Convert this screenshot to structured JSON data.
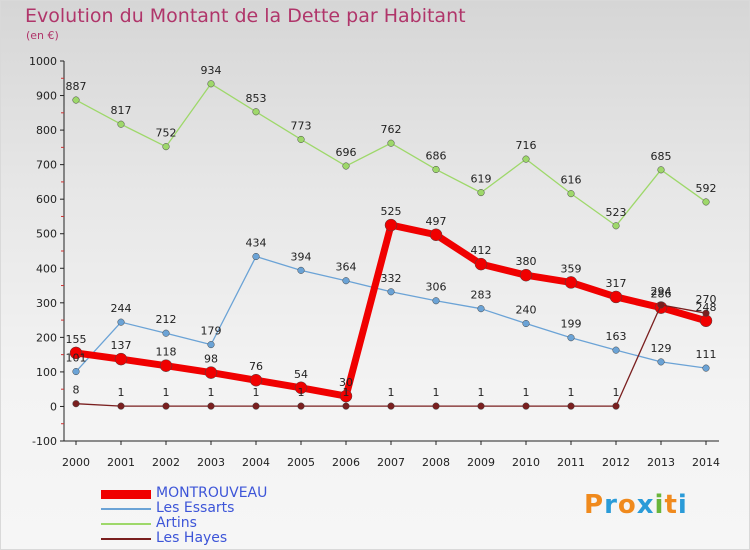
{
  "header": {
    "title": "Evolution du Montant de la Dette par Habitant",
    "subtitle": "(en €)"
  },
  "logo": {
    "text": "Proxiti",
    "colors": [
      "#f08a1d",
      "#2a9bd8",
      "#f08a1d",
      "#2a9bd8",
      "#69b53a",
      "#f08a1d",
      "#2a9bd8"
    ]
  },
  "chart_data": {
    "type": "line",
    "title": "Evolution du Montant de la Dette par Habitant",
    "subtitle": "(en €)",
    "x": [
      "2000",
      "2001",
      "2002",
      "2003",
      "2004",
      "2005",
      "2006",
      "2007",
      "2008",
      "2009",
      "2010",
      "2011",
      "2012",
      "2013",
      "2014"
    ],
    "ylim": [
      -100,
      1000
    ],
    "yticks": [
      -100,
      0,
      100,
      200,
      300,
      400,
      500,
      600,
      700,
      800,
      900,
      1000
    ],
    "grid": false,
    "legend_placement": "bottom-left",
    "series": [
      {
        "name": "MONTROUVEAU",
        "color": "#f00000",
        "values": [
          155,
          137,
          118,
          98,
          76,
          54,
          30,
          525,
          497,
          412,
          380,
          359,
          317,
          286,
          248
        ],
        "labels": [
          "155",
          "137",
          "118",
          "98",
          "76",
          "54",
          "30",
          "525",
          "497",
          "412",
          "380",
          "359",
          "317",
          "286",
          "248"
        ]
      },
      {
        "name": "Les Essarts",
        "color": "#6ba3d6",
        "values": [
          101,
          244,
          212,
          179,
          434,
          394,
          364,
          332,
          306,
          283,
          240,
          199,
          163,
          129,
          111
        ],
        "labels": [
          "101",
          "244",
          "212",
          "179",
          "434",
          "394",
          "364",
          "332",
          "306",
          "283",
          "240",
          "199",
          "163",
          "129",
          "111"
        ]
      },
      {
        "name": "Artins",
        "color": "#9ed86a",
        "values": [
          887,
          817,
          752,
          934,
          853,
          773,
          696,
          762,
          686,
          619,
          716,
          616,
          523,
          685,
          592
        ],
        "labels": [
          "887",
          "817",
          "752",
          "934",
          "853",
          "773",
          "696",
          "762",
          "686",
          "619",
          "716",
          "616",
          "523",
          "685",
          "592"
        ]
      },
      {
        "name": "Les Hayes",
        "color": "#7a1f1f",
        "values": [
          8,
          1,
          1,
          1,
          1,
          1,
          1,
          1,
          1,
          1,
          1,
          1,
          1,
          294,
          270
        ],
        "labels": [
          "8",
          "1",
          "1",
          "1",
          "1",
          "1",
          "1",
          "1",
          "1",
          "1",
          "1",
          "1",
          "1",
          "294",
          "270"
        ]
      }
    ]
  }
}
